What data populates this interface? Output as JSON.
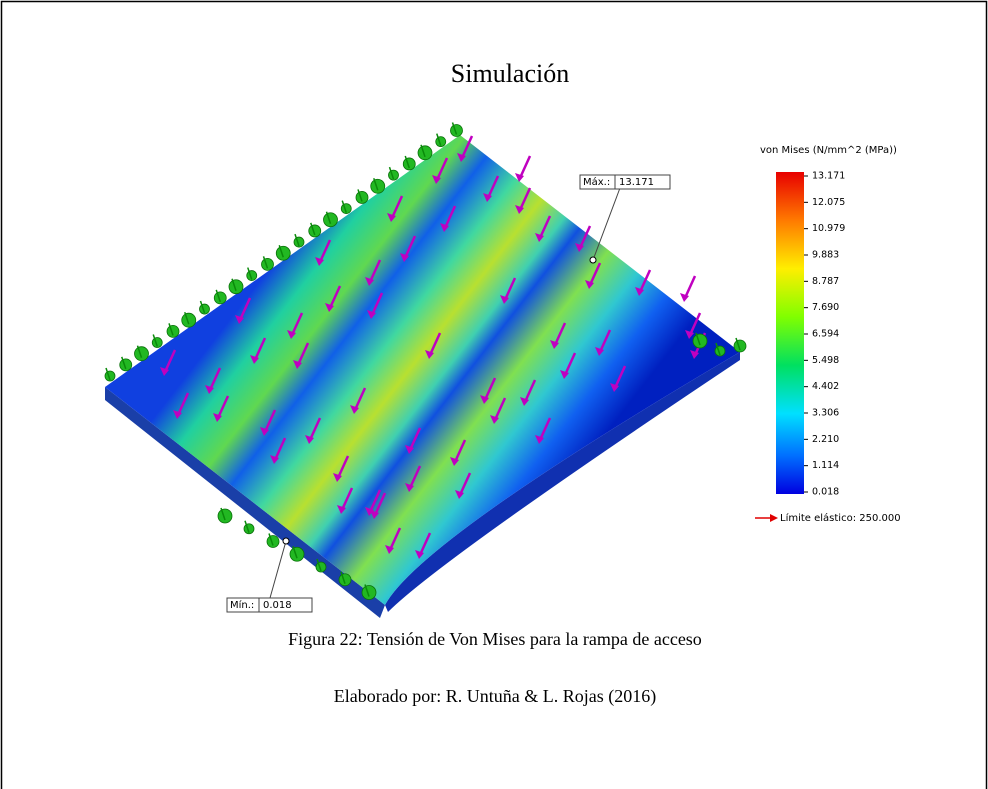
{
  "figure": {
    "title": "Simulación",
    "legend": {
      "title": "von Mises (N/mm^2 (MPa))",
      "ticks": [
        "13.171",
        "12.075",
        "10.979",
        "9.883",
        "8.787",
        "7.690",
        "6.594",
        "5.498",
        "4.402",
        "3.306",
        "2.210",
        "1.114",
        "0.018"
      ],
      "yield": "Límite elástico: 250.000"
    },
    "max_label": {
      "label": "Máx.:",
      "value": "13.171"
    },
    "min_label": {
      "label": "Mín.:",
      "value": "0.018"
    }
  },
  "caption": "Figura 22: Tensión de Von Mises para la rampa de acceso",
  "credit": "Elaborado por: R. Untuña & L. Rojas (2016)"
}
